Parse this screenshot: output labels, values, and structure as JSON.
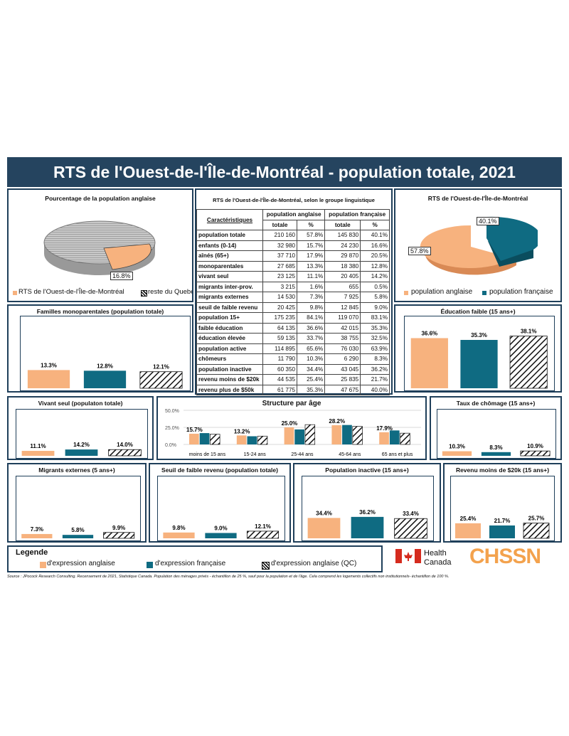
{
  "title": "RTS de l'Ouest-de-l'Île-de-Montréal - population totale, 2021",
  "colors": {
    "anglaise": "#f7b27e",
    "francaise": "#0f6b82",
    "navy": "#25445f"
  },
  "pie_left": {
    "title": "Pourcentage  de la population  anglaise",
    "label": "16.8%",
    "legend": [
      "RTS de l'Ouest-de-l'Île-de-Montréal",
      "reste du Quebec"
    ]
  },
  "pie_right": {
    "title": "RTS de l'Ouest-de-l'Île-de-Montréal",
    "label_fr": "40.1%",
    "label_en": "57.8%",
    "legend": [
      "population anglaise",
      "population française"
    ]
  },
  "table": {
    "title": "RTS de l'Ouest-de-l'Île-de-Montréal, selon le groupe linguistique",
    "h_carac": "Caractéristiques",
    "h_ang": "population anglaise",
    "h_fra": "population française",
    "h_tot": "totale",
    "h_pct": "%",
    "rows": [
      {
        "label": "population totale",
        "at": "210 160",
        "ap": "57.8%",
        "ft": "145 830",
        "fp": "40.1%"
      },
      {
        "label": "enfants (0-14)",
        "at": "32 980",
        "ap": "15.7%",
        "ft": "24 230",
        "fp": "16.6%"
      },
      {
        "label": "aînés (65+)",
        "at": "37 710",
        "ap": "17.9%",
        "ft": "29 870",
        "fp": "20.5%"
      },
      {
        "label": "monoparentales",
        "at": "27 685",
        "ap": "13.3%",
        "ft": "18 380",
        "fp": "12.8%"
      },
      {
        "label": "vivant seul",
        "at": "23 125",
        "ap": "11.1%",
        "ft": "20 405",
        "fp": "14.2%"
      },
      {
        "label": "migrants inter-prov.",
        "at": "3 215",
        "ap": "1.6%",
        "ft": "655",
        "fp": "0.5%"
      },
      {
        "label": "migrants externes",
        "at": "14 530",
        "ap": "7.3%",
        "ft": "7 925",
        "fp": "5.8%"
      },
      {
        "label": "seuil de faible revenu",
        "at": "20 425",
        "ap": "9.8%",
        "ft": "12 845",
        "fp": "9.0%"
      },
      {
        "label": "population 15+",
        "at": "175 235",
        "ap": "84.1%",
        "ft": "119 070",
        "fp": "83.1%"
      },
      {
        "label": "faible éducation",
        "at": "64 135",
        "ap": "36.6%",
        "ft": "42 015",
        "fp": "35.3%"
      },
      {
        "label": "éducation élevée",
        "at": "59 135",
        "ap": "33.7%",
        "ft": "38 755",
        "fp": "32.5%"
      },
      {
        "label": "population active",
        "at": "114 895",
        "ap": "65.6%",
        "ft": "76 030",
        "fp": "63.9%"
      },
      {
        "label": "chômeurs",
        "at": "11 790",
        "ap": "10.3%",
        "ft": "6 290",
        "fp": "8.3%"
      },
      {
        "label": "population inactive",
        "at": "60 350",
        "ap": "34.4%",
        "ft": "43 045",
        "fp": "36.2%"
      },
      {
        "label": "revenu moins de $20k",
        "at": "44 535",
        "ap": "25.4%",
        "ft": "25 835",
        "fp": "21.7%"
      },
      {
        "label": "revenu plus de $50k",
        "at": "61 775",
        "ap": "35.3%",
        "ft": "47 675",
        "fp": "40.0%"
      }
    ]
  },
  "chart_data": [
    {
      "type": "pie",
      "title": "Pourcentage  de la population  anglaise",
      "categories": [
        "RTS de l'Ouest-de-l'Île-de-Montréal",
        "reste du Quebec"
      ],
      "values": [
        16.8,
        83.2
      ]
    },
    {
      "type": "pie",
      "title": "RTS de l'Ouest-de-l'Île-de-Montréal",
      "categories": [
        "population anglaise",
        "population française"
      ],
      "values": [
        57.8,
        40.1
      ]
    },
    {
      "type": "bar",
      "title": "Familles monoparentales (population totale)",
      "values": [
        13.3,
        12.8,
        12.1
      ],
      "labels": [
        "13.3%",
        "12.8%",
        "12.1%"
      ]
    },
    {
      "type": "bar",
      "title": "Éducation faible (15 ans+)",
      "values": [
        36.6,
        35.3,
        38.1
      ],
      "labels": [
        "36.6%",
        "35.3%",
        "38.1%"
      ]
    },
    {
      "type": "bar",
      "title": "Vivant seul (populaton totale)",
      "values": [
        11.1,
        14.2,
        14.0
      ],
      "labels": [
        "11.1%",
        "14.2%",
        "14.0%"
      ]
    },
    {
      "type": "bar",
      "title": "Structure par âge",
      "categories": [
        "moins de 15 ans",
        "15-24 ans",
        "25-44 ans",
        "45-64 ans",
        "65 ans et plus"
      ],
      "yticks": [
        "50.0%",
        "25.0%",
        "0.0%"
      ],
      "ylim": [
        0,
        50
      ],
      "series": [
        {
          "values": [
            15.7,
            13.2,
            25.0,
            28.2,
            17.9
          ]
        },
        {
          "values": [
            16.6,
            12.0,
            22.0,
            28.5,
            20.5
          ]
        },
        {
          "values": [
            15.0,
            12.2,
            29.0,
            26.5,
            16.5
          ]
        }
      ],
      "labels": [
        "15.7%",
        "13.2%",
        "25.0%",
        "28.2%",
        "17.9%"
      ]
    },
    {
      "type": "bar",
      "title": "Taux de chômage (15 ans+)",
      "values": [
        10.3,
        8.3,
        10.9
      ],
      "labels": [
        "10.3%",
        "8.3%",
        "10.9%"
      ]
    },
    {
      "type": "bar",
      "title": "Migrants externes (5 ans+)",
      "values": [
        7.3,
        5.8,
        9.9
      ],
      "labels": [
        "7.3%",
        "5.8%",
        "9.9%"
      ]
    },
    {
      "type": "bar",
      "title": "Seuil de faible revenu (population totale)",
      "values": [
        9.8,
        9.0,
        12.1
      ],
      "labels": [
        "9.8%",
        "9.0%",
        "12.1%"
      ]
    },
    {
      "type": "bar",
      "title": "Population inactive (15 ans+)",
      "values": [
        34.4,
        36.2,
        33.4
      ],
      "labels": [
        "34.4%",
        "36.2%",
        "33.4%"
      ]
    },
    {
      "type": "bar",
      "title": "Revenu moins de $20k (15 ans+)",
      "values": [
        25.4,
        21.7,
        25.7
      ],
      "labels": [
        "25.4%",
        "21.7%",
        "25.7%"
      ]
    }
  ],
  "legend": {
    "title": "Legende",
    "items": [
      "d'expression anglaise",
      "d'expression française",
      "d'expression anglaise (QC)"
    ]
  },
  "logos": {
    "health": "Health",
    "canada": "Canada",
    "chssn": "CHSSN"
  },
  "source": "Source : JPocock Research Consulting. Recensement de 2021, Statistique Canada. Population des ménages privés - échantillon de 25 %, sauf pour la population et de l'âge. Cela comprend les logements collectifs non institutionnels- échantillon de 100 %."
}
